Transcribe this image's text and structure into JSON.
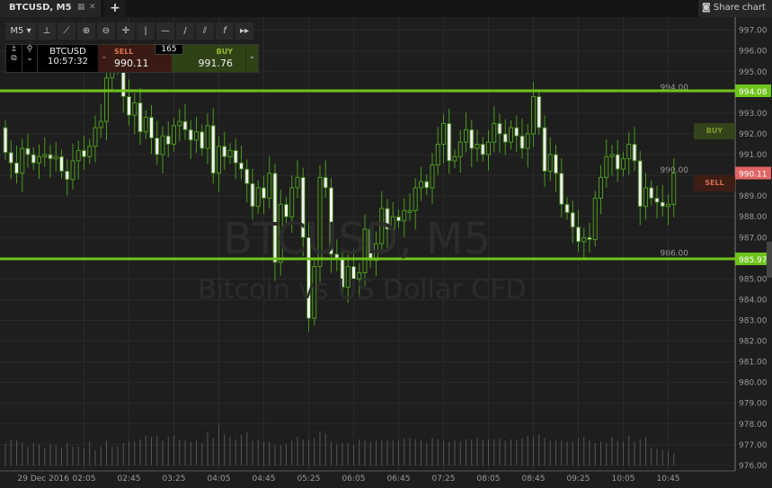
{
  "tab": {
    "title": "BTCUSD, M5",
    "new_tab": "+"
  },
  "share": {
    "label": "Share chart",
    "icon": "camera-icon"
  },
  "toolbar": {
    "timeframe": "M5",
    "tools": [
      "fit-icon",
      "indicator-icon",
      "zoom-in-icon",
      "zoom-out-icon",
      "crosshair-icon",
      "vertical-line-icon",
      "horizontal-line-icon",
      "trend-line-icon",
      "channel-icon",
      "function-icon",
      "fast-forward-icon"
    ]
  },
  "trade": {
    "symbol": "BTCUSD",
    "time": "10:57:32",
    "sell_label": "SELL",
    "sell_price": "990.11",
    "buy_label": "BUY",
    "buy_price": "991.76",
    "spread": "165"
  },
  "watermark": {
    "line1": "BTCUSD, M5",
    "line2": "Bitcoin vs US Dollar CFD"
  },
  "side_buttons": {
    "buy": "BUY",
    "sell": "SELL"
  },
  "colors": {
    "level": "#6fc31a",
    "sell_tag": "#e06464",
    "up": "#4f9a1a",
    "down": "#f0f0f0"
  },
  "chart_data": {
    "type": "candlestick",
    "yticks": [
      "997.00",
      "996.00",
      "995.00",
      "994.00",
      "993.00",
      "992.00",
      "991.00",
      "990.00",
      "989.00",
      "988.00",
      "987.00",
      "986.00",
      "985.00",
      "984.00",
      "983.00",
      "982.00",
      "981.00",
      "980.00",
      "979.00",
      "978.00",
      "977.00",
      "976.00"
    ],
    "ylim": [
      975.8,
      997.6
    ],
    "date_label": "29 Dec 2016",
    "xticks": [
      {
        "i": 14,
        "label": "02:05"
      },
      {
        "i": 22,
        "label": "02:45"
      },
      {
        "i": 30,
        "label": "03:25"
      },
      {
        "i": 38,
        "label": "04:05"
      },
      {
        "i": 46,
        "label": "04:45"
      },
      {
        "i": 54,
        "label": "05:25"
      },
      {
        "i": 62,
        "label": "06:05"
      },
      {
        "i": 70,
        "label": "06:45"
      },
      {
        "i": 78,
        "label": "07:25"
      },
      {
        "i": 86,
        "label": "08:05"
      },
      {
        "i": 94,
        "label": "08:45"
      },
      {
        "i": 102,
        "label": "09:25"
      },
      {
        "i": 110,
        "label": "10:05"
      },
      {
        "i": 118,
        "label": "10:45"
      }
    ],
    "levels": [
      {
        "value": 994.08,
        "label": "994.08"
      },
      {
        "value": 985.97,
        "label": "985.97"
      }
    ],
    "current_price": {
      "value": 990.11,
      "label": "990.11"
    },
    "first_open": 992.3,
    "close": [
      991.1,
      990.6,
      990.1,
      991.3,
      991.0,
      990.6,
      990.9,
      991.0,
      990.8,
      990.9,
      990.2,
      989.8,
      990.7,
      991.2,
      990.9,
      991.4,
      992.3,
      992.6,
      994.7,
      995.6,
      995.2,
      993.8,
      992.9,
      993.5,
      992.1,
      992.8,
      991.8,
      991.0,
      991.9,
      991.5,
      992.4,
      992.6,
      992.2,
      991.7,
      992.1,
      991.3,
      992.4,
      990.1,
      991.4,
      990.9,
      991.2,
      990.6,
      990.3,
      989.6,
      988.5,
      989.4,
      988.9,
      990.1,
      985.8,
      988.6,
      988.0,
      989.4,
      989.9,
      987.0,
      983.1,
      985.6,
      989.9,
      989.4,
      986.2,
      986.0,
      984.6,
      985.6,
      985.0,
      985.3,
      987.4,
      985.9,
      986.7,
      988.4,
      987.4,
      988.0,
      987.8,
      988.3,
      988.3,
      989.4,
      989.7,
      989.4,
      990.5,
      991.5,
      992.5,
      990.7,
      990.9,
      991.6,
      992.2,
      991.3,
      991.5,
      991.0,
      991.6,
      992.5,
      992.0,
      991.6,
      992.3,
      991.9,
      991.3,
      992.0,
      993.8,
      992.3,
      990.2,
      991.0,
      990.1,
      988.6,
      988.2,
      987.5,
      986.8,
      987.0,
      986.9,
      988.9,
      989.9,
      990.9,
      991.0,
      990.3,
      990.8,
      991.5,
      990.7,
      988.5,
      989.4,
      988.9,
      988.7,
      988.5,
      988.6,
      990.1
    ],
    "volume": [
      18,
      22,
      21,
      19,
      16,
      19,
      18,
      15,
      18,
      17,
      15,
      19,
      16,
      16,
      15,
      20,
      13,
      16,
      21,
      16,
      16,
      19,
      20,
      20,
      22,
      25,
      24,
      25,
      21,
      24,
      25,
      22,
      21,
      20,
      21,
      19,
      28,
      23,
      34,
      26,
      24,
      22,
      26,
      28,
      21,
      22,
      20,
      20,
      17,
      17,
      18,
      21,
      24,
      22,
      22,
      23,
      29,
      27,
      20,
      18,
      19,
      19,
      17,
      22,
      21,
      20,
      21,
      22,
      21,
      21,
      21,
      23,
      23,
      22,
      21,
      19,
      23,
      22,
      21,
      20,
      21,
      20,
      22,
      22,
      23,
      22,
      22,
      22,
      23,
      21,
      22,
      22,
      23,
      25,
      24,
      26,
      23,
      21,
      21,
      21,
      20,
      20,
      23,
      24,
      21,
      19,
      20,
      19,
      24,
      21,
      20,
      25,
      20,
      22,
      24,
      15,
      14,
      13,
      12,
      10
    ]
  }
}
